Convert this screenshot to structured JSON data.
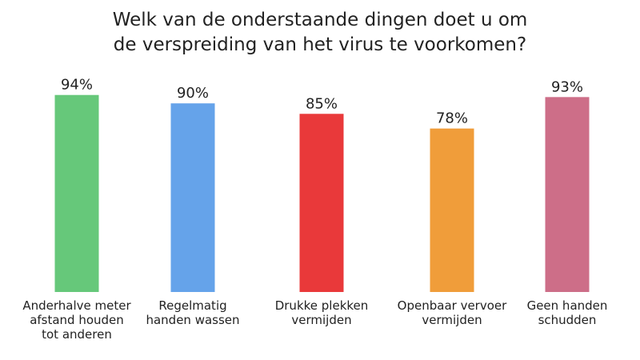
{
  "chart_data": {
    "type": "bar",
    "title_lines": [
      "Welk van de onderstaande dingen doet u om",
      "de verspreiding van het virus te voorkomen?"
    ],
    "categories": [
      [
        "Anderhalve meter",
        "afstand houden",
        "tot anderen"
      ],
      [
        "Regelmatig",
        "handen wassen"
      ],
      [
        "Drukke plekken",
        "vermijden"
      ],
      [
        "Openbaar vervoer",
        "vermijden"
      ],
      [
        "Geen handen",
        "schudden"
      ]
    ],
    "values": [
      94,
      90,
      85,
      78,
      93
    ],
    "value_labels": [
      "94%",
      "90%",
      "85%",
      "78%",
      "93%"
    ],
    "colors": [
      "#66c87a",
      "#65a3ea",
      "#e9393a",
      "#f09d3a",
      "#cd6e88"
    ],
    "ylim": [
      0,
      100
    ],
    "grid": false,
    "legend": "none"
  }
}
